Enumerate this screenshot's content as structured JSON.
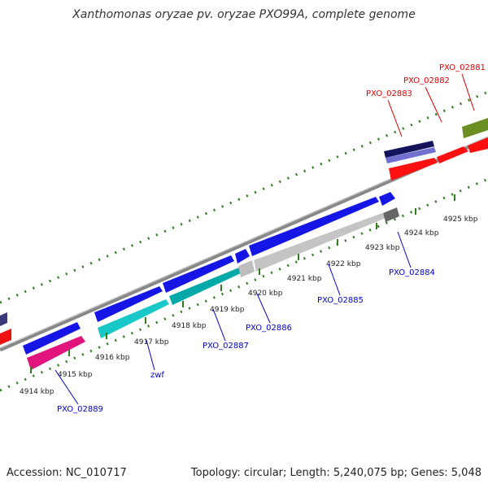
{
  "title": "Xanthomonas oryzae pv. oryzae PXO99A, complete genome",
  "footer": {
    "accession": "Accession: NC_010717",
    "summary": "Topology: circular; Length: 5,240,075 bp; Genes: 5,048"
  },
  "colors": {
    "outer_label": "#e00000",
    "inner_label": "#0000cc",
    "tick": "#2e7d1e",
    "backbone": "#888888",
    "tick_text": "#222222"
  },
  "ticks": [
    "4914 kbp",
    "4915 kbp",
    "4916 kbp",
    "4917 kbp",
    "4918 kbp",
    "4919 kbp",
    "4920 kbp",
    "4921 kbp",
    "4922 kbp",
    "4923 kbp",
    "4924 kbp",
    "4925 kbp"
  ],
  "outer_labels": [
    "PXO_02883",
    "PXO_02882",
    "PXO_02881"
  ],
  "inner_labels": [
    "PXO_02889",
    "zwf",
    "PXO_02887",
    "PXO_02886",
    "PXO_02885",
    "PXO_02884"
  ]
}
